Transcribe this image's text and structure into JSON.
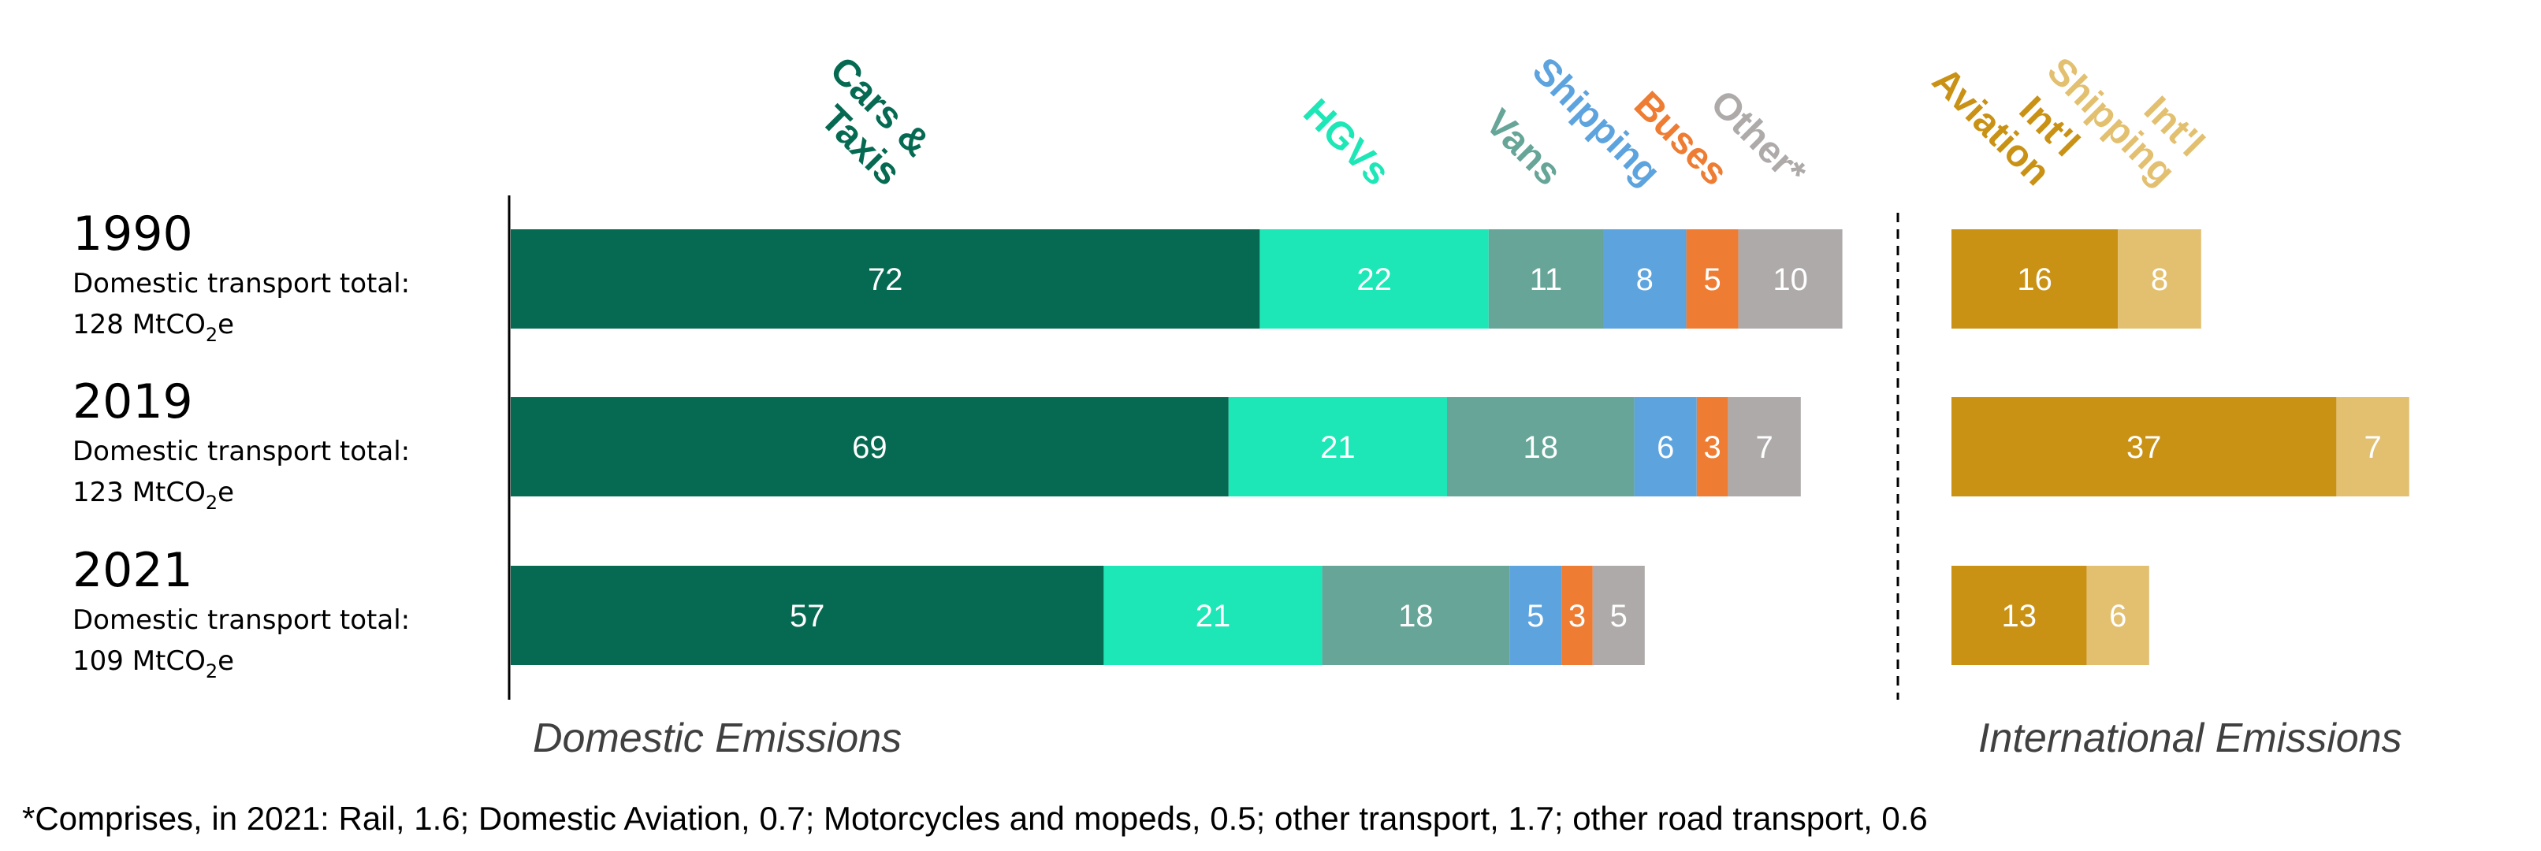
{
  "chart_data": {
    "type": "bar",
    "orientation": "horizontal",
    "stacked": true,
    "categories": [
      "1990",
      "2019",
      "2021"
    ],
    "category_totals": [
      {
        "line1": "Domestic transport total:",
        "value": "128",
        "unit_prefix": "MtCO",
        "unit_sub": "2",
        "unit_suffix": "e"
      },
      {
        "line1": "Domestic transport total:",
        "value": "123",
        "unit_prefix": "MtCO",
        "unit_sub": "2",
        "unit_suffix": "e"
      },
      {
        "line1": "Domestic transport total:",
        "value": "109",
        "unit_prefix": "MtCO",
        "unit_sub": "2",
        "unit_suffix": "e"
      }
    ],
    "groups": [
      {
        "title": "Domestic Emissions",
        "series": [
          {
            "name": "Cars & Taxis",
            "label_lines": [
              "Cars &",
              "Taxis"
            ],
            "color": "#066a52",
            "values": [
              72,
              69,
              57
            ]
          },
          {
            "name": "HGVs",
            "label_lines": [
              "HGVs"
            ],
            "color": "#1de7b6",
            "values": [
              22,
              21,
              21
            ]
          },
          {
            "name": "Vans",
            "label_lines": [
              "Vans"
            ],
            "color": "#66a598",
            "values": [
              11,
              18,
              18
            ]
          },
          {
            "name": "Shipping",
            "label_lines": [
              "Shipping"
            ],
            "color": "#5da3de",
            "values": [
              8,
              6,
              5
            ]
          },
          {
            "name": "Buses",
            "label_lines": [
              "Buses"
            ],
            "color": "#ee7c32",
            "values": [
              5,
              3,
              3
            ]
          },
          {
            "name": "Other*",
            "label_lines": [
              "Other*"
            ],
            "color": "#aeaaaa",
            "values": [
              10,
              7,
              5
            ]
          }
        ]
      },
      {
        "title": "International Emissions",
        "series": [
          {
            "name": "Int'l Aviation",
            "label_lines": [
              "Int'l",
              "Aviation"
            ],
            "color": "#c99215",
            "values": [
              16,
              37,
              13
            ]
          },
          {
            "name": "Int'l Shipping",
            "label_lines": [
              "Int'l",
              "Shipping"
            ],
            "color": "#e2c070",
            "values": [
              8,
              7,
              6
            ]
          }
        ]
      }
    ],
    "footnote": "*Comprises, in 2021: Rail, 1.6; Domestic Aviation, 0.7; Motorcycles and mopeds, 0.5; other transport, 1.7; other road transport, 0.6",
    "grid": false,
    "legend": "none"
  }
}
